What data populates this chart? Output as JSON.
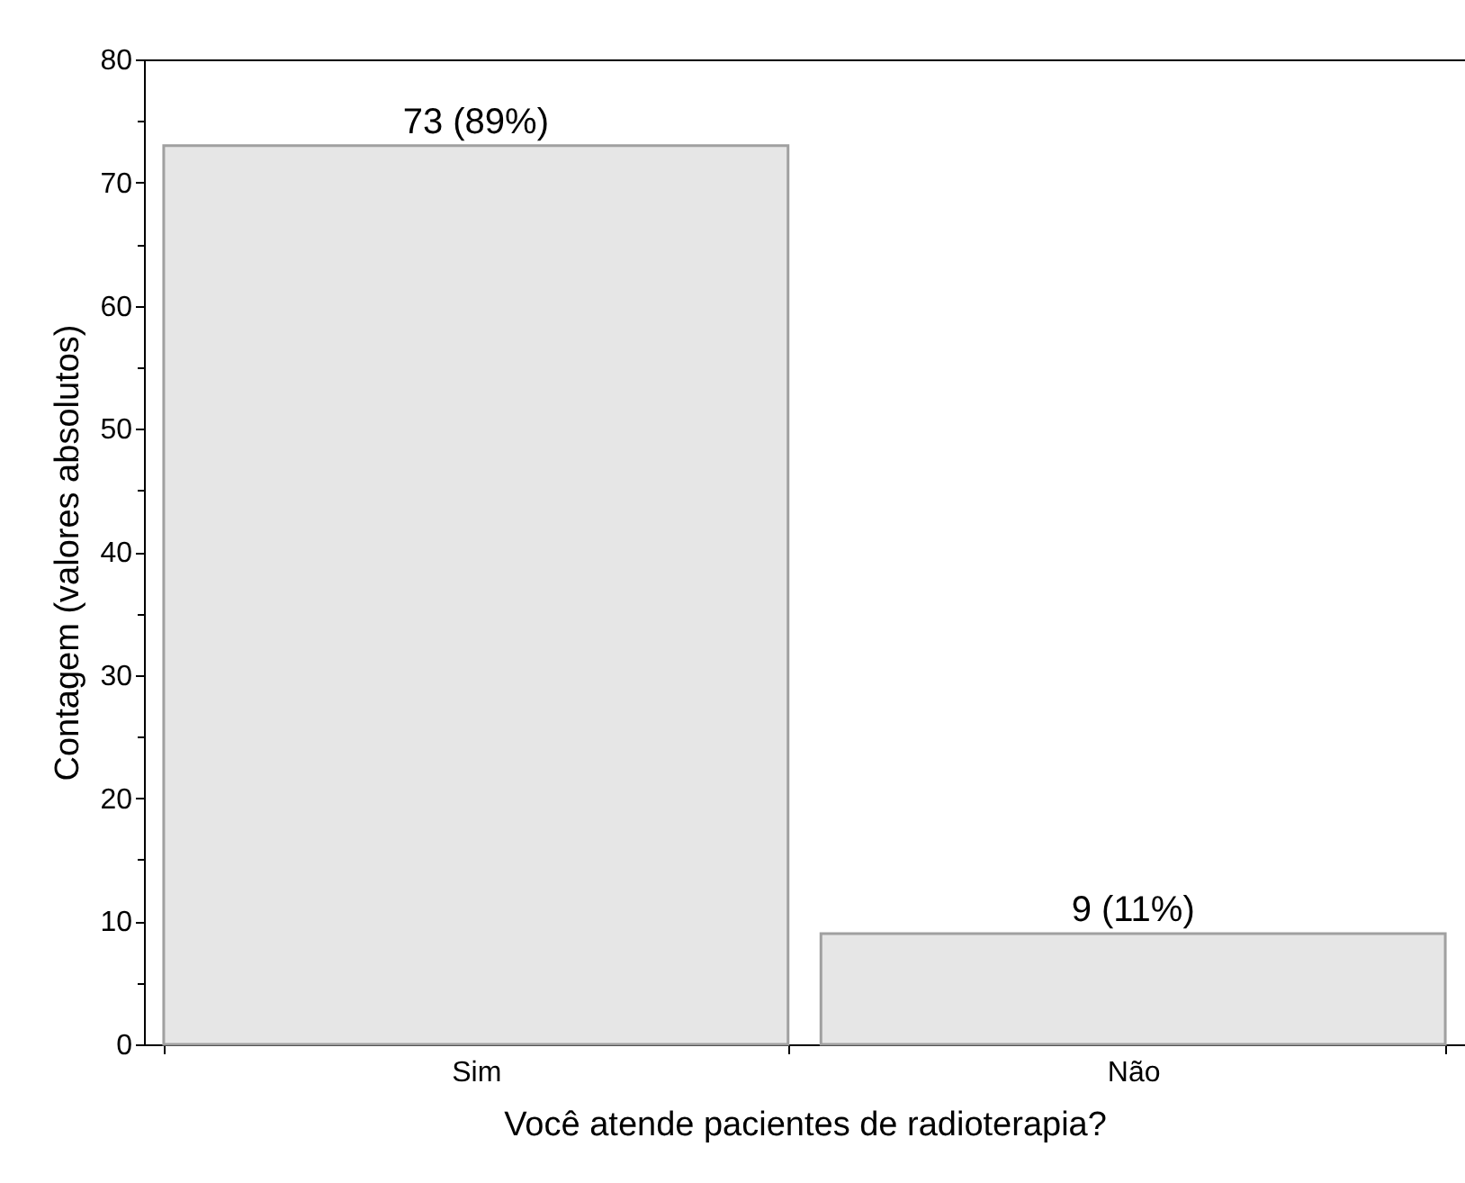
{
  "chart_data": {
    "type": "bar",
    "xlabel": "Você atende pacientes de radioterapia?",
    "ylabel": "Contagem (valores absolutos)",
    "categories": [
      "Sim",
      "Não"
    ],
    "values": [
      73,
      9
    ],
    "color": "#e6e6e6",
    "value_labels": [
      "73 (89%)",
      "9 (11%)"
    ],
    "ylim": [
      0,
      80
    ],
    "yticks": [
      0,
      {
        "value": 5,
        "label": null
      },
      10,
      {
        "value": 15,
        "label": null
      },
      20,
      {
        "value": 25,
        "label": null
      },
      30,
      {
        "value": 35,
        "label": null
      },
      40,
      {
        "value": 45,
        "label": null
      },
      50,
      {
        "value": 55,
        "label": null
      },
      60,
      {
        "value": 65,
        "label": null
      },
      70,
      {
        "value": 75,
        "label": null
      },
      80
    ],
    "grid": false
  }
}
